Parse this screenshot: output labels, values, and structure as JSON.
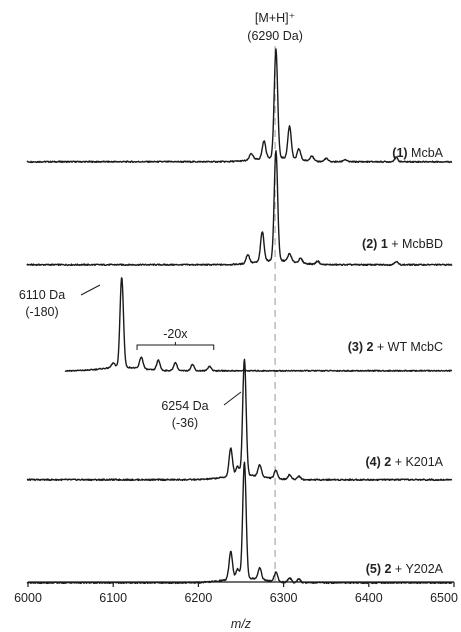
{
  "chart_data": {
    "type": "line",
    "xlabel": "m/z",
    "xlim": [
      6000,
      6500
    ],
    "x_ticks": [
      "6000",
      "6100",
      "6200",
      "6300",
      "6400",
      "6500"
    ],
    "reference_line": {
      "x": 6290,
      "label_line1": "[M+H]⁺",
      "label_line2": "(6290 Da)"
    },
    "series": [
      {
        "id": 1,
        "prefix": "(1)",
        "compound": "",
        "suffix": " McbA",
        "peaks": [
          [
            6262,
            0.06
          ],
          [
            6277,
            0.16
          ],
          [
            6291,
            1.0
          ],
          [
            6307,
            0.3
          ],
          [
            6318,
            0.1
          ],
          [
            6333,
            0.05
          ],
          [
            6350,
            0.03
          ],
          [
            6372,
            0.02
          ],
          [
            6432,
            0.04
          ]
        ]
      },
      {
        "id": 2,
        "prefix": "(2)",
        "compound": "1",
        "suffix": " + McbBD",
        "peaks": [
          [
            6258,
            0.08
          ],
          [
            6275,
            0.27
          ],
          [
            6291,
            1.0
          ],
          [
            6307,
            0.07
          ],
          [
            6320,
            0.04
          ],
          [
            6340,
            0.03
          ],
          [
            6432,
            0.03
          ]
        ]
      },
      {
        "id": 3,
        "prefix": "(3)",
        "compound": "2",
        "suffix": " + WT McbC",
        "peaks": [
          [
            6100,
            0.05
          ],
          [
            6110,
            1.0
          ],
          [
            6133,
            0.13
          ],
          [
            6153,
            0.11
          ],
          [
            6173,
            0.09
          ],
          [
            6193,
            0.07
          ],
          [
            6213,
            0.05
          ]
        ]
      },
      {
        "id": 4,
        "prefix": "(4)",
        "compound": "2",
        "suffix": " + K201A",
        "peaks": [
          [
            6238,
            0.24
          ],
          [
            6246,
            0.08
          ],
          [
            6254,
            1.0
          ],
          [
            6272,
            0.1
          ],
          [
            6291,
            0.07
          ],
          [
            6307,
            0.04
          ],
          [
            6318,
            0.03
          ]
        ]
      },
      {
        "id": 5,
        "prefix": "(5)",
        "compound": "2",
        "suffix": " + Y202A",
        "peaks": [
          [
            6238,
            0.24
          ],
          [
            6246,
            0.08
          ],
          [
            6254,
            1.0
          ],
          [
            6272,
            0.1
          ],
          [
            6291,
            0.08
          ],
          [
            6307,
            0.04
          ],
          [
            6318,
            0.03
          ]
        ]
      }
    ],
    "annotations": [
      {
        "trace": 3,
        "line1": "6110 Da",
        "line2": "(-180)"
      },
      {
        "trace": 3,
        "bracket_label": "-20x",
        "x_range": [
          6128,
          6218
        ]
      },
      {
        "trace": 4,
        "line1": "6254 Da",
        "line2": "(-36)"
      }
    ]
  }
}
